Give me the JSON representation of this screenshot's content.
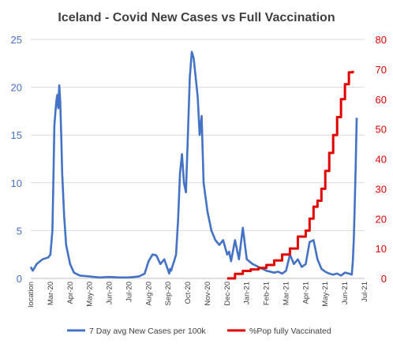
{
  "chart_data": {
    "type": "line",
    "title": "Iceland - Covid New Cases vs Full Vaccination",
    "x_tick_labels": [
      "location",
      "Mar-20",
      "Apr-20",
      "May-20",
      "Jun-20",
      "Jul-20",
      "Aug-20",
      "Sep-20",
      "Oct-20",
      "Nov-20",
      "Dec-20",
      "Jan-21",
      "Feb-21",
      "Mar-21",
      "Apr-21",
      "May-21",
      "Jun-21",
      "Jul-21"
    ],
    "y_left": {
      "ylim": [
        0,
        25
      ],
      "ticks": [
        0,
        5,
        10,
        15,
        20,
        25
      ],
      "color": "#4472c4"
    },
    "y_right": {
      "ylim": [
        0,
        80
      ],
      "ticks": [
        0,
        10,
        20,
        30,
        40,
        50,
        60,
        70,
        80
      ],
      "color": "#e00000"
    },
    "grid": true,
    "legend_position": "bottom",
    "series": [
      {
        "name": "7 Day avg New Cases per 100k",
        "axis": "left",
        "color": "#4472c4",
        "x": [
          0,
          0.1,
          0.3,
          0.6,
          0.9,
          1.0,
          1.1,
          1.15,
          1.2,
          1.3,
          1.35,
          1.4,
          1.45,
          1.5,
          1.55,
          1.6,
          1.7,
          1.8,
          2.0,
          2.2,
          2.5,
          3,
          3.5,
          4,
          4.5,
          5,
          5.5,
          5.8,
          6.0,
          6.2,
          6.4,
          6.6,
          6.8,
          7.0,
          7.05,
          7.1,
          7.15,
          7.2,
          7.3,
          7.4,
          7.5,
          7.6,
          7.7,
          7.8,
          7.9,
          8.0,
          8.1,
          8.2,
          8.3,
          8.4,
          8.5,
          8.6,
          8.7,
          8.8,
          9.0,
          9.2,
          9.4,
          9.6,
          9.8,
          10.0,
          10.1,
          10.2,
          10.4,
          10.6,
          10.8,
          11.0,
          11.3,
          11.6,
          12.0,
          12.4,
          12.6,
          12.8,
          13.0,
          13.2,
          13.4,
          13.6,
          13.8,
          14.0,
          14.2,
          14.4,
          14.6,
          14.8,
          15.0,
          15.2,
          15.4,
          15.6,
          15.8,
          16.0,
          16.2,
          16.35,
          16.4,
          16.45,
          16.5,
          16.55,
          16.6
        ],
        "values": [
          1.2,
          0.8,
          1.5,
          2.0,
          2.2,
          2.5,
          5.0,
          10.0,
          16.0,
          18.5,
          19.2,
          17.8,
          20.2,
          18.5,
          15.0,
          11.0,
          6.5,
          3.5,
          1.5,
          0.6,
          0.3,
          0.2,
          0.1,
          0.15,
          0.1,
          0.1,
          0.2,
          0.5,
          1.8,
          2.5,
          2.4,
          1.5,
          2.0,
          0.8,
          0.5,
          1.0,
          0.8,
          1.2,
          1.8,
          2.5,
          6.0,
          11.0,
          13.0,
          10.0,
          9.0,
          15.0,
          21.0,
          23.7,
          23.0,
          21.0,
          19.0,
          15.0,
          17.0,
          10.0,
          7.0,
          5.0,
          4.0,
          3.5,
          4.0,
          2.5,
          2.8,
          1.8,
          4.0,
          2.0,
          5.3,
          2.0,
          1.5,
          1.2,
          0.8,
          0.6,
          0.7,
          0.5,
          0.8,
          2.5,
          1.5,
          2.0,
          1.2,
          1.5,
          3.8,
          4.0,
          2.0,
          1.0,
          0.7,
          0.5,
          0.4,
          0.5,
          0.3,
          0.6,
          0.5,
          0.4,
          1.8,
          4.0,
          8.0,
          12.0,
          16.8
        ]
      },
      {
        "name": "%Pop fully Vaccinated",
        "axis": "right",
        "color": "#e00000",
        "x": [
          10.0,
          10.4,
          10.8,
          11.2,
          11.6,
          12.0,
          12.4,
          12.8,
          13.2,
          13.6,
          14.0,
          14.2,
          14.4,
          14.6,
          14.8,
          15.0,
          15.2,
          15.4,
          15.6,
          15.8,
          16.0,
          16.2,
          16.4
        ],
        "values": [
          0,
          1.5,
          2.5,
          3.0,
          3.5,
          4.5,
          6.0,
          8.0,
          10.0,
          14.0,
          16.0,
          20.0,
          24.0,
          26.0,
          30.0,
          36.0,
          42.0,
          48.0,
          54.0,
          60.0,
          65.0,
          69.0,
          69.5
        ]
      }
    ]
  }
}
